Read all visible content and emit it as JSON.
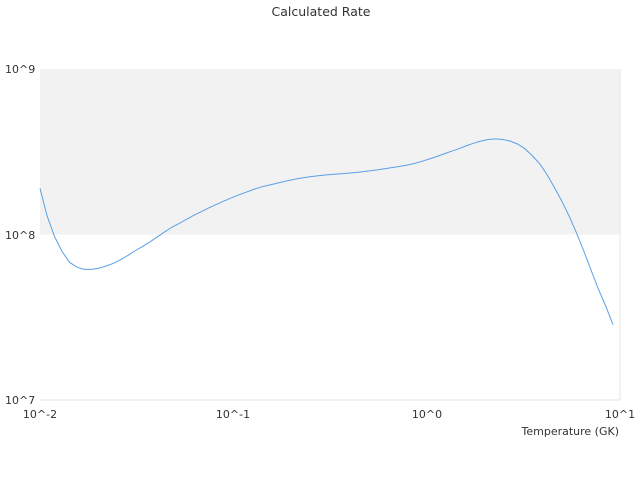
{
  "chart_data": {
    "type": "line",
    "title": "Calculated Rate",
    "xlabel": "Temperature (GK)",
    "ylabel": "",
    "x_scale": "log",
    "y_scale": "log",
    "xlim": [
      0.01,
      10
    ],
    "ylim": [
      10000000,
      1000000000
    ],
    "x_tick_labels": [
      "10^-2",
      "10^-1",
      "10^0",
      "10^1"
    ],
    "y_tick_labels": [
      "10^7",
      "10^8",
      "10^9"
    ],
    "grid": false,
    "legend": "none",
    "background_bands": [
      "#f2f2f2",
      "#ffffff"
    ],
    "line_color": "#5aa0e6",
    "series": [
      {
        "x": [
          0.01,
          0.0109,
          0.0119,
          0.013,
          0.0142,
          0.0155,
          0.0169,
          0.0185,
          0.0201,
          0.022,
          0.024,
          0.0262,
          0.0286,
          0.0312,
          0.0341,
          0.0372,
          0.0406,
          0.0443,
          0.0483,
          0.0528,
          0.0576,
          0.0628,
          0.0686,
          0.0748,
          0.0817,
          0.0891,
          0.0973,
          0.106,
          0.116,
          0.127,
          0.138,
          0.151,
          0.165,
          0.18,
          0.196,
          0.214,
          0.234,
          0.255,
          0.278,
          0.304,
          0.332,
          0.362,
          0.395,
          0.431,
          0.47,
          0.513,
          0.56,
          0.611,
          0.667,
          0.728,
          0.794,
          0.867,
          0.946,
          1.03,
          1.13,
          1.23,
          1.34,
          1.47,
          1.6,
          1.75,
          1.91,
          2.08,
          2.27,
          2.48,
          2.7,
          2.95,
          3.22,
          3.51,
          3.84,
          4.19,
          4.57,
          4.99,
          5.44,
          5.94,
          6.48,
          7.08,
          7.72,
          8.43,
          9.2
        ],
        "y": [
          190000000,
          129000000,
          97000000,
          79000000,
          68000000,
          63500000,
          61500000,
          61500000,
          62500000,
          64500000,
          67000000,
          70500000,
          75000000,
          80000000,
          85000000,
          90500000,
          97000000,
          104000000,
          111000000,
          117000000,
          124000000,
          131000000,
          138000000,
          145000000,
          152000000,
          159000000,
          166000000,
          173000000,
          180000000,
          187000000,
          193000000,
          198000000,
          203000000,
          208000000,
          213000000,
          217000000,
          221000000,
          224000000,
          227000000,
          229000000,
          231000000,
          233000000,
          235000000,
          237000000,
          240000000,
          243000000,
          246000000,
          250000000,
          254000000,
          258000000,
          263000000,
          269000000,
          277000000,
          286000000,
          296000000,
          307000000,
          318000000,
          330000000,
          343000000,
          356000000,
          367000000,
          375000000,
          378000000,
          375000000,
          367000000,
          352000000,
          330000000,
          300000000,
          268000000,
          230000000,
          193000000,
          160000000,
          130000000,
          103000000,
          80000000,
          61000000,
          47000000,
          37000000,
          28500000
        ]
      }
    ]
  }
}
